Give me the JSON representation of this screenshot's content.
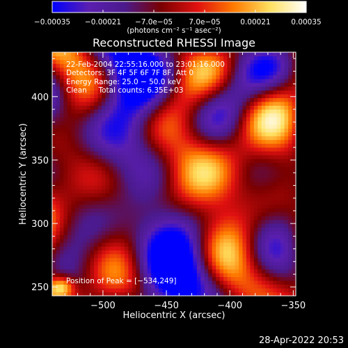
{
  "chart_data": {
    "type": "heatmap",
    "title": "Reconstructed RHESSI Image",
    "xlabel": "Heliocentric X (arcsec)",
    "ylabel": "Heliocentric Y (arcsec)",
    "xlim": [
      -540,
      -348
    ],
    "ylim": [
      243,
      435
    ],
    "x_ticks": [
      -500,
      -450,
      -400,
      -350
    ],
    "x_tick_labels": [
      "−500",
      "−450",
      "−400",
      "−350"
    ],
    "y_ticks": [
      250,
      300,
      350,
      400
    ],
    "y_tick_labels": [
      "250",
      "300",
      "350",
      "400"
    ],
    "colorbar": {
      "range": [
        -0.00035,
        0.00035
      ],
      "tick_values": [
        -0.00035,
        -0.00021,
        -7e-05,
        7e-05,
        0.00021,
        0.00035
      ],
      "tick_labels": [
        "−0.00035",
        "−0.00021",
        "−7.0e−05",
        "7.0e−05",
        "0.00021",
        "0.00035"
      ],
      "units_label": "(photons cm⁻² s⁻¹ asec⁻²)",
      "colors": [
        "#0000ff",
        "#5a1fb0",
        "#4b1a8c",
        "#7a0000",
        "#e01010",
        "#ff7a00",
        "#ffe060",
        "#ffffff"
      ]
    },
    "grid": false,
    "peak_position": [
      -534,
      249
    ],
    "peak_value": 0.00035,
    "seed": 7
  },
  "annotations": {
    "time_range": "22-Feb-2004 22:55:16.000 to 23:01:16.000",
    "detectors": "Detectors: 3F 4F 5F 6F 7F 8F, Att 0",
    "energy": "Energy Range: 25.0 − 50.0 keV",
    "clean": "Clean     Total counts: 6.35E+03",
    "peak": "Position of Peak = [−534,249]"
  },
  "footer": {
    "timestamp": "28-Apr-2022 20:53"
  }
}
